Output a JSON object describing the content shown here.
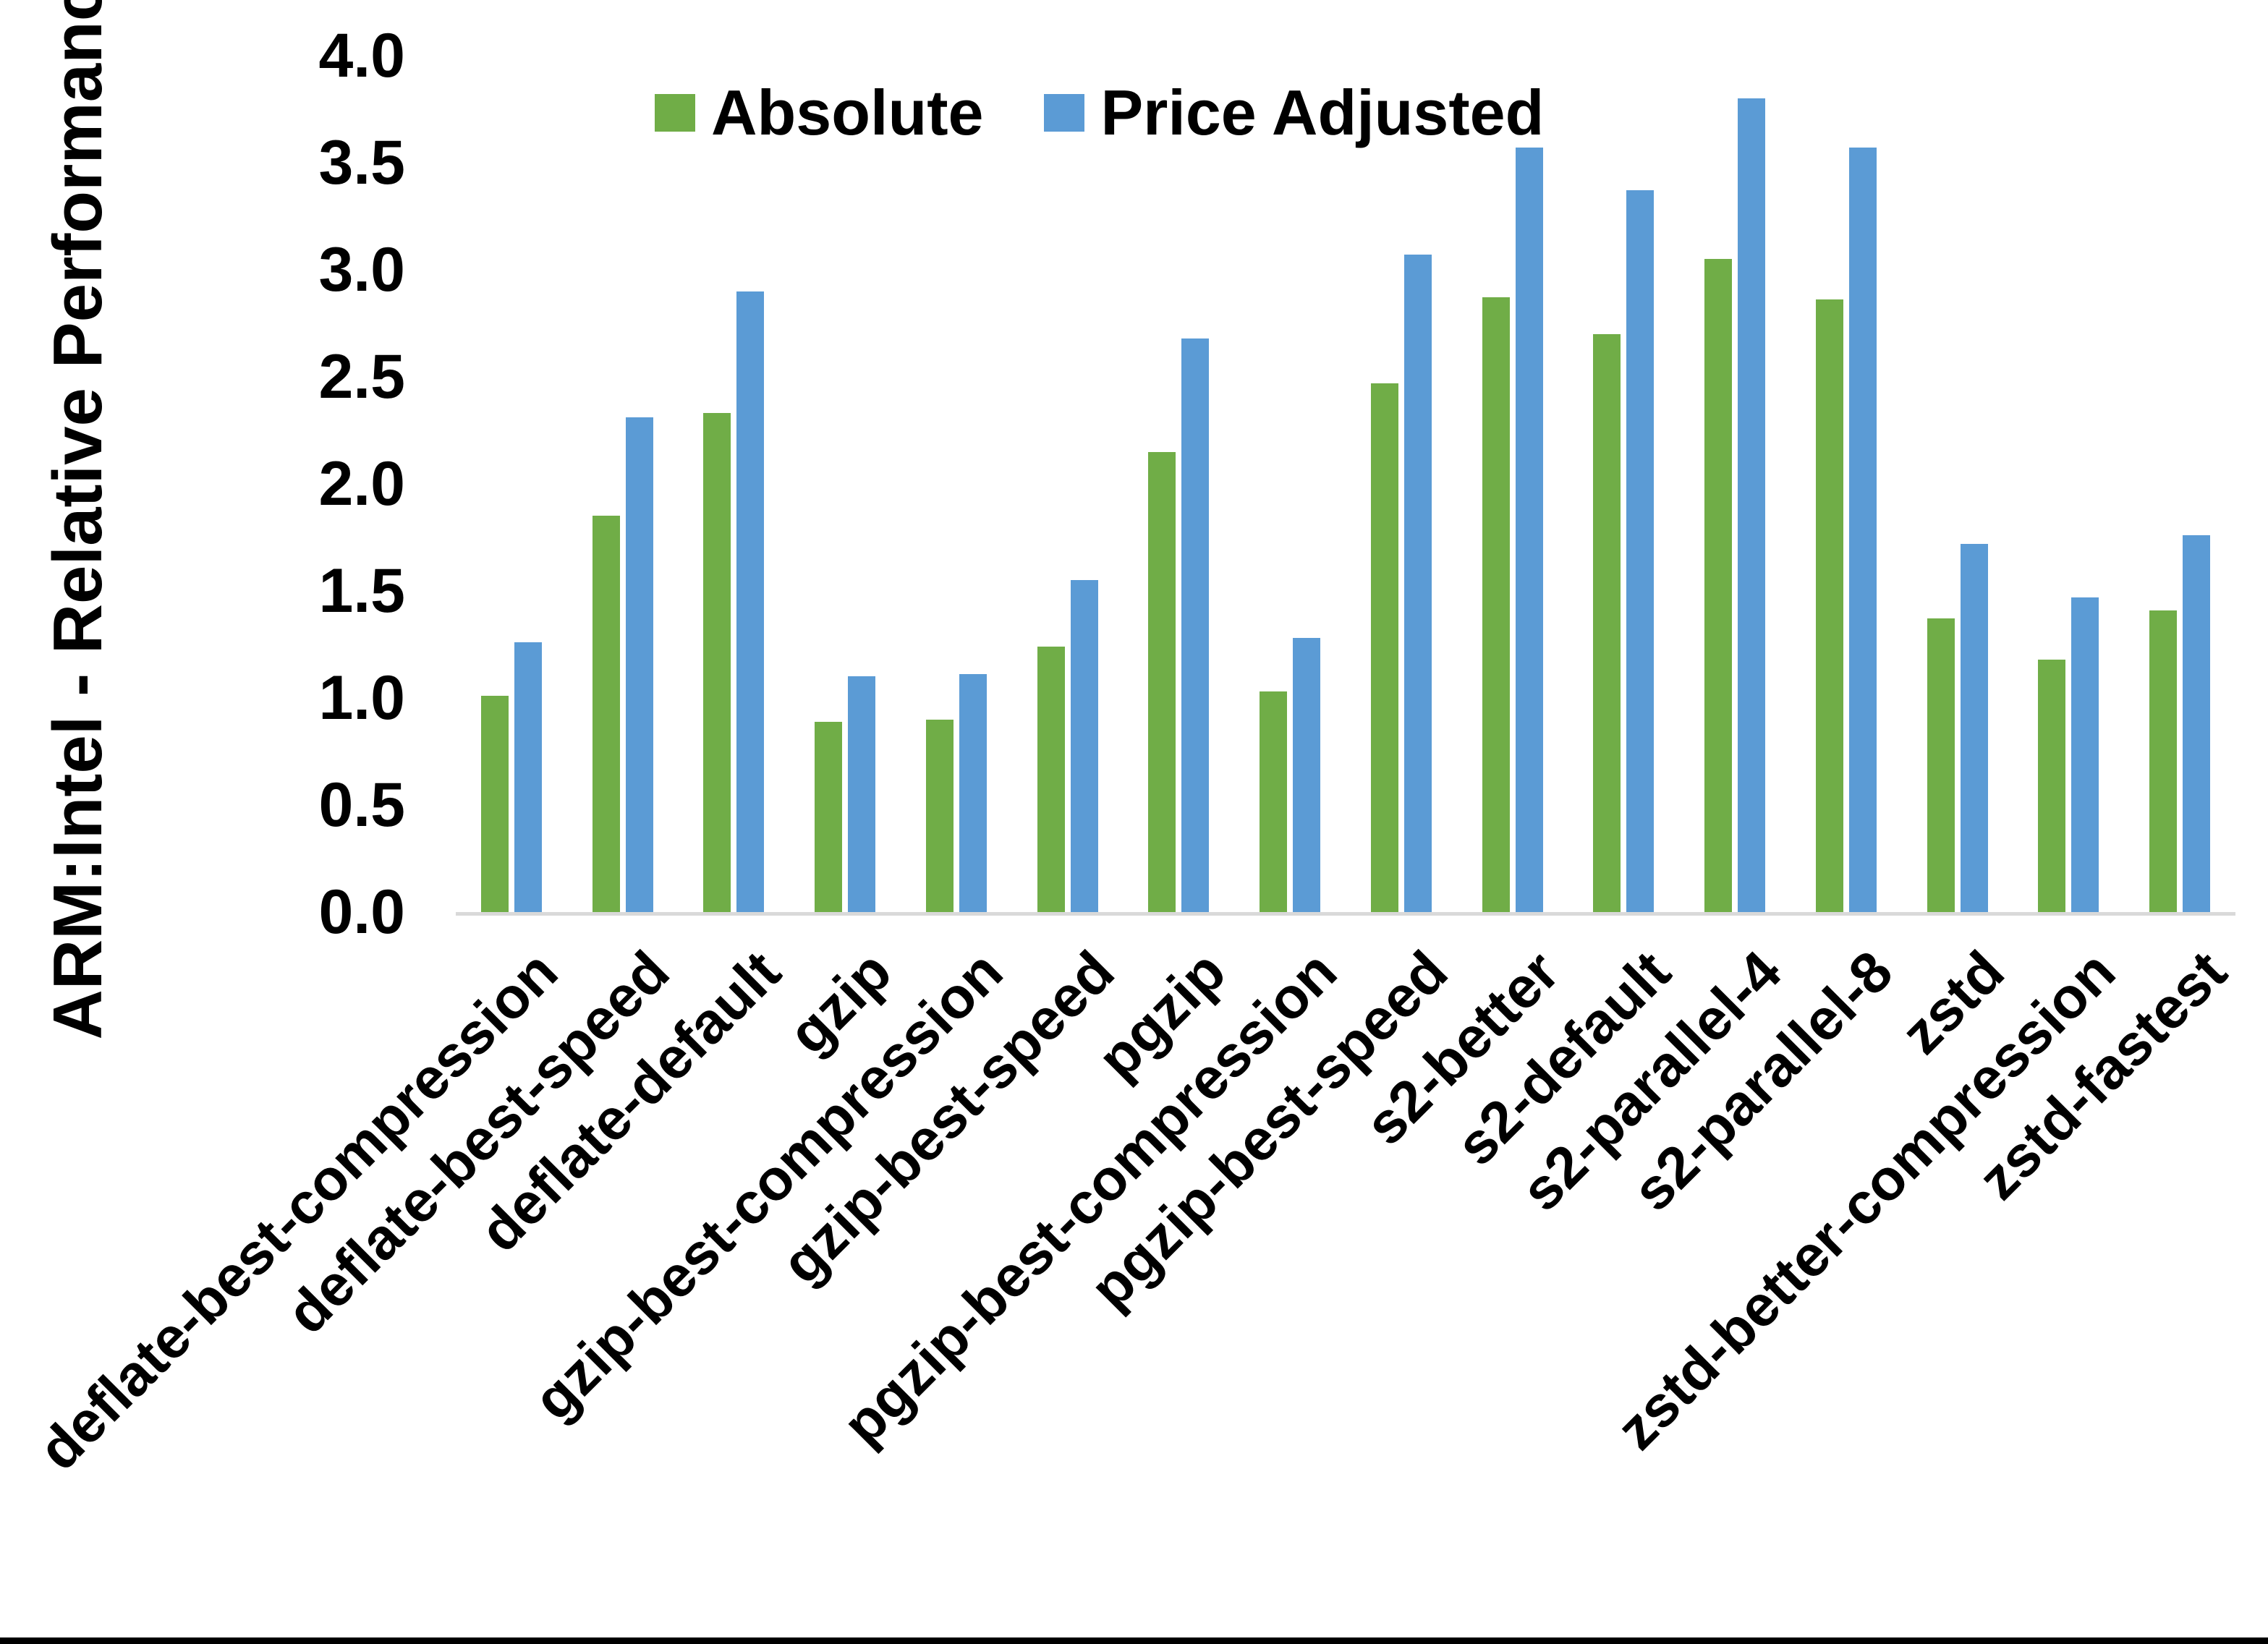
{
  "colors": {
    "absolute": "#70AD47",
    "price_adjusted": "#5B9BD5",
    "axis_line": "#D9D9D9",
    "text": "#000000",
    "bottom_bar": "#000000"
  },
  "chart_data": {
    "type": "bar",
    "title": "",
    "ylabel": "ARM:Intel - Relative Performance",
    "xlabel": "",
    "ylim": [
      0.0,
      4.0
    ],
    "ytick_labels": [
      "0.0",
      "0.5",
      "1.0",
      "1.5",
      "2.0",
      "2.5",
      "3.0",
      "3.5",
      "4.0"
    ],
    "grid": false,
    "legend_position": "top-center",
    "categories": [
      "deflate-best-compression",
      "deflate-best-speed",
      "deflate-default",
      "gzip",
      "gzip-best-compression",
      "gzip-best-speed",
      "pgzip",
      "pgzip-best-compression",
      "pgzip-best-speed",
      "s2-better",
      "s2-default",
      "s2-parallel-4",
      "s2-parallel-8",
      "zstd",
      "zstd-better-compression",
      "zstd-fastest"
    ],
    "series": [
      {
        "name": "Absolute",
        "color": "#70AD47",
        "values": [
          1.01,
          1.85,
          2.33,
          0.89,
          0.9,
          1.24,
          2.15,
          1.03,
          2.47,
          2.87,
          2.7,
          3.05,
          2.86,
          1.37,
          1.18,
          1.41
        ]
      },
      {
        "name": "Price Adjusted",
        "color": "#5B9BD5",
        "values": [
          1.26,
          2.31,
          2.9,
          1.1,
          1.11,
          1.55,
          2.68,
          1.28,
          3.07,
          3.57,
          3.37,
          3.8,
          3.57,
          1.72,
          1.47,
          1.76
        ]
      }
    ]
  }
}
